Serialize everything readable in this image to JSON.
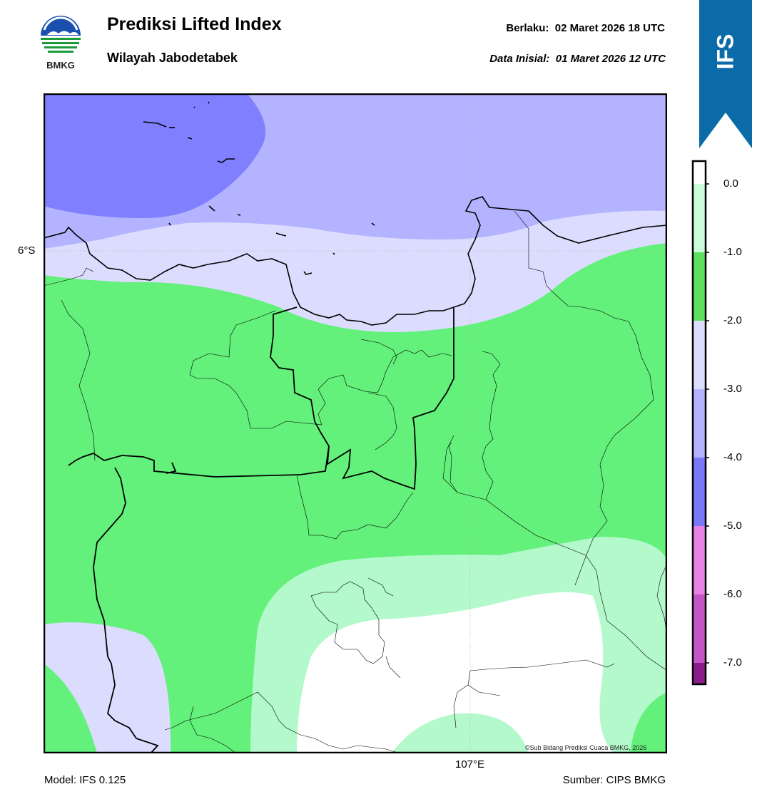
{
  "header": {
    "title": "Prediksi Lifted Index",
    "subtitle": "Wilayah Jabodetabek",
    "valid_label": "Berlaku:",
    "valid_value": "02 Maret 2026 18 UTC",
    "init_label": "Data Inisial:",
    "init_value": "01 Maret 2026 12 UTC"
  },
  "logo": {
    "text": "BMKG",
    "icon": "bmkg-logo-icon"
  },
  "ribbon": {
    "text": "IFS",
    "color": "#0b6aa8"
  },
  "map": {
    "lat_label": "6°S",
    "lon_label": "107°E",
    "credit": "©Sub Bidang Prediksi Cuaca BMKG, 2026",
    "colors": {
      "band_le_minus4": "#8080ff",
      "band_minus4_minus3": "#b3b3ff",
      "band_minus3_minus2": "#dcdcff",
      "band_minus2_minus1": "#63f07b",
      "band_minus1_0": "#b3f9cb",
      "band_ge_0": "#ffffff"
    }
  },
  "colorbar": {
    "ticks": [
      "0.0",
      "-1.0",
      "-2.0",
      "-3.0",
      "-4.0",
      "-5.0",
      "-6.0",
      "-7.0"
    ],
    "segments": [
      {
        "color": "#ffffff"
      },
      {
        "color": "#c9fcd9"
      },
      {
        "color": "#5ee05f"
      },
      {
        "color": "#dcdcff"
      },
      {
        "color": "#b3b3ff"
      },
      {
        "color": "#7878f8"
      },
      {
        "color": "#e982e6"
      },
      {
        "color": "#c455c4"
      },
      {
        "color": "#8a1d8a"
      }
    ]
  },
  "footer": {
    "model": "Model: IFS 0.125",
    "source": "Sumber: CIPS BMKG"
  }
}
